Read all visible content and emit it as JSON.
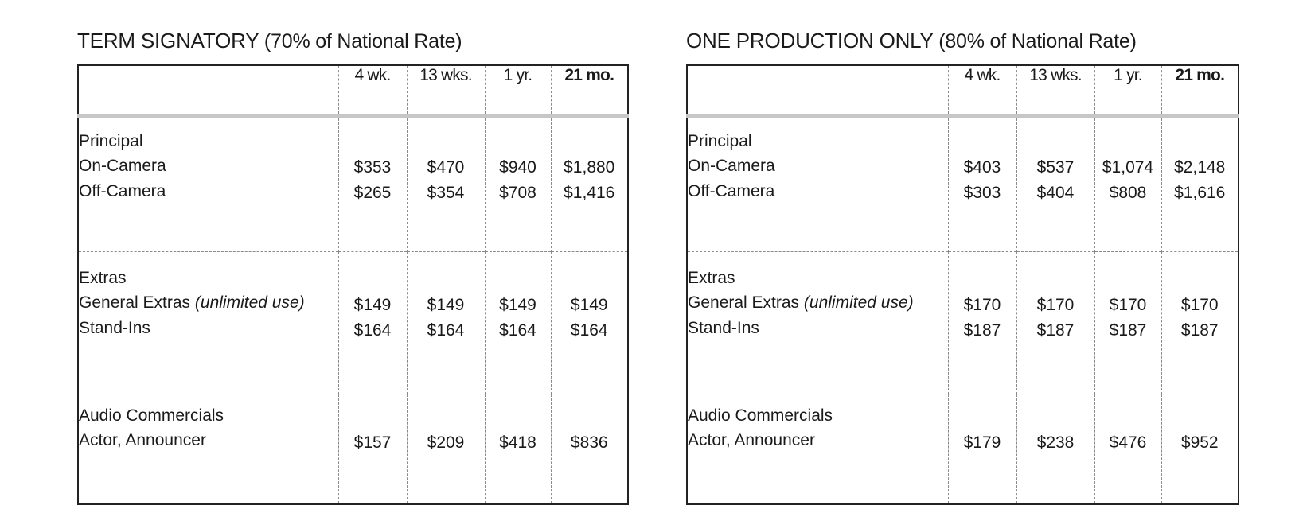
{
  "tables": [
    {
      "title": "TERM SIGNATORY",
      "subtitle": "(70% of National Rate)",
      "columns": [
        "4 wk.",
        "13 wks.",
        "1 yr.",
        "21 mo."
      ],
      "groups": [
        {
          "heading": "Principal",
          "rows": [
            {
              "label": "On-Camera",
              "note": "",
              "values": [
                "$353",
                "$470",
                "$940",
                "$1,880"
              ]
            },
            {
              "label": "Off-Camera",
              "note": "",
              "values": [
                "$265",
                "$354",
                "$708",
                "$1,416"
              ]
            }
          ]
        },
        {
          "heading": "Extras",
          "rows": [
            {
              "label": "General Extras ",
              "note": "(unlimited use)",
              "values": [
                "$149",
                "$149",
                "$149",
                "$149"
              ]
            },
            {
              "label": "Stand-Ins",
              "note": "",
              "values": [
                "$164",
                "$164",
                "$164",
                "$164"
              ]
            }
          ]
        },
        {
          "heading": "Audio Commercials",
          "rows": [
            {
              "label": "Actor, Announcer",
              "note": "",
              "values": [
                "$157",
                "$209",
                "$418",
                "$836"
              ]
            }
          ]
        }
      ]
    },
    {
      "title": "ONE PRODUCTION ONLY",
      "subtitle": "(80% of National Rate)",
      "columns": [
        "4 wk.",
        "13 wks.",
        "1 yr.",
        "21 mo."
      ],
      "groups": [
        {
          "heading": "Principal",
          "rows": [
            {
              "label": "On-Camera",
              "note": "",
              "values": [
                "$403",
                "$537",
                "$1,074",
                "$2,148"
              ]
            },
            {
              "label": "Off-Camera",
              "note": "",
              "values": [
                "$303",
                "$404",
                "$808",
                "$1,616"
              ]
            }
          ]
        },
        {
          "heading": "Extras",
          "rows": [
            {
              "label": "General Extras ",
              "note": "(unlimited use)",
              "values": [
                "$170",
                "$170",
                "$170",
                "$170"
              ]
            },
            {
              "label": "Stand-Ins",
              "note": "",
              "values": [
                "$187",
                "$187",
                "$187",
                "$187"
              ]
            }
          ]
        },
        {
          "heading": "Audio Commercials",
          "rows": [
            {
              "label": "Actor, Announcer",
              "note": "",
              "values": [
                "$179",
                "$238",
                "$476",
                "$952"
              ]
            }
          ]
        }
      ]
    }
  ]
}
